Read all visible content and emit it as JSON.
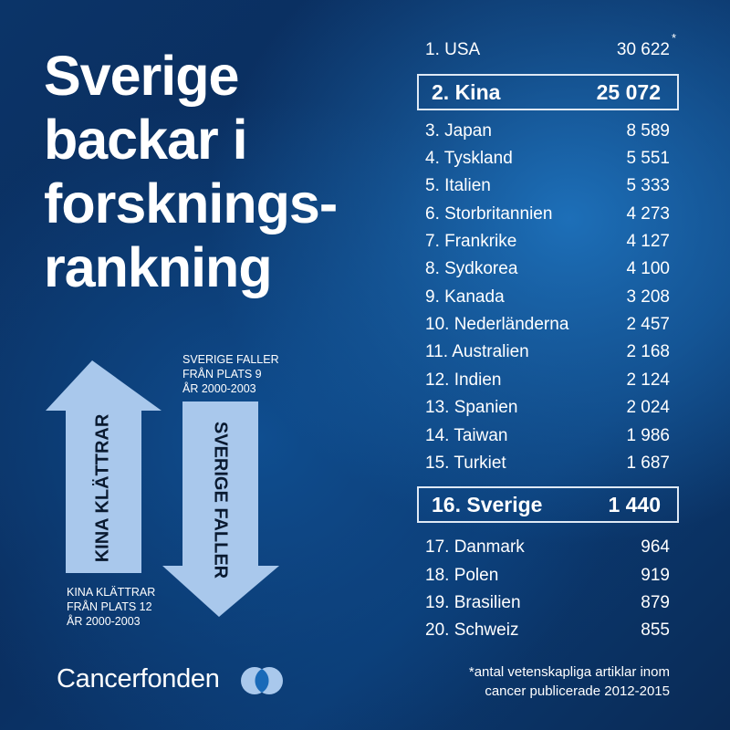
{
  "title_lines": [
    "Sverige",
    "backar i",
    "forsknings-",
    "rankning"
  ],
  "ranking": [
    {
      "rank": "1. USA",
      "value": "30 622"
    },
    {
      "rank": "2. Kina",
      "value": "25 072",
      "highlight": true
    },
    {
      "rank": "3. Japan",
      "value": "8 589"
    },
    {
      "rank": "4. Tyskland",
      "value": "5 551"
    },
    {
      "rank": "5. Italien",
      "value": "5 333"
    },
    {
      "rank": "6. Storbritannien",
      "value": "4 273"
    },
    {
      "rank": "7. Frankrike",
      "value": "4 127"
    },
    {
      "rank": "8. Sydkorea",
      "value": "4 100"
    },
    {
      "rank": "9. Kanada",
      "value": "3 208"
    },
    {
      "rank": "10. Nederländerna",
      "value": "2 457"
    },
    {
      "rank": "11. Australien",
      "value": "2 168"
    },
    {
      "rank": "12. Indien",
      "value": "2 124"
    },
    {
      "rank": "13. Spanien",
      "value": "2 024"
    },
    {
      "rank": "14. Taiwan",
      "value": "1 986"
    },
    {
      "rank": "15. Turkiet",
      "value": "1 687"
    },
    {
      "rank": "16. Sverige",
      "value": "1 440",
      "highlight": true
    },
    {
      "rank": "17. Danmark",
      "value": "964"
    },
    {
      "rank": "18. Polen",
      "value": "919"
    },
    {
      "rank": "19. Brasilien",
      "value": "879"
    },
    {
      "rank": "20. Schweiz",
      "value": "855"
    }
  ],
  "asterisk": "*",
  "footnote": [
    "*antal vetenskapliga artiklar inom",
    "cancer publicerade 2012-2015"
  ],
  "arrows": {
    "up_label": "KINA KLÄTTRAR",
    "down_label": "SVERIGE FALLER",
    "up_caption": [
      "KINA KLÄTTRAR",
      "FRÅN PLATS 12",
      "ÅR 2000-2003"
    ],
    "down_caption": [
      "SVERIGE FALLER",
      "FRÅN PLATS 9",
      "ÅR 2000-2003"
    ]
  },
  "logo": "Cancerfonden",
  "colors": {
    "arrow": "#a9c8ec",
    "background": "#0b3468"
  }
}
